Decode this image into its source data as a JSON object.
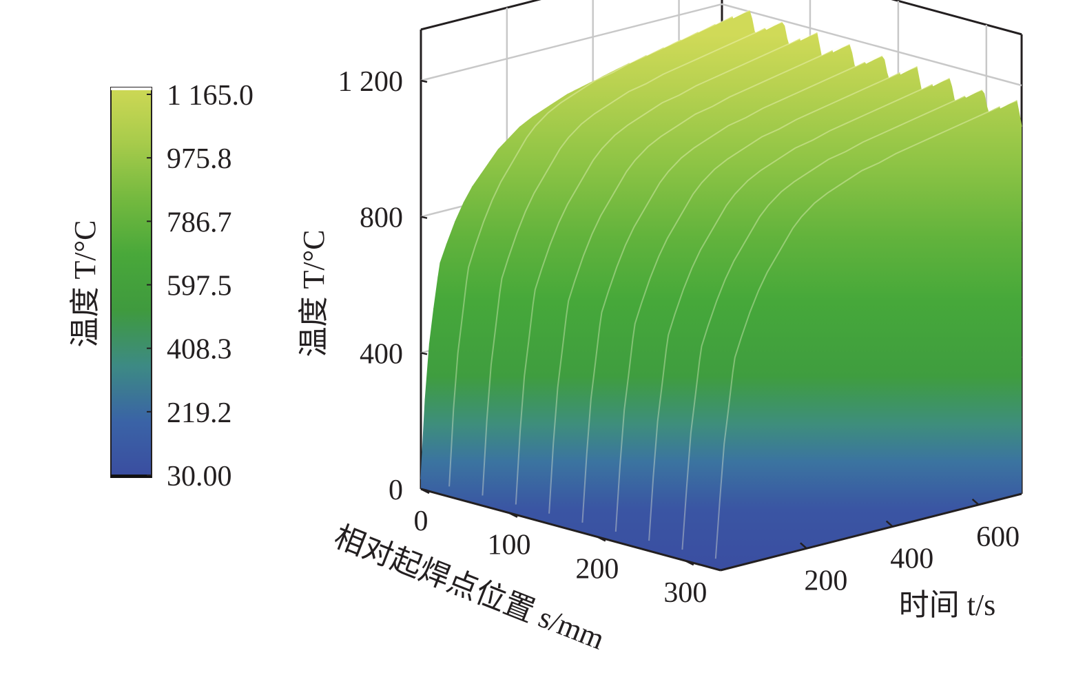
{
  "chart_data": {
    "type": "surface3d",
    "title": "",
    "colorbar": {
      "label": "温度 T/°C",
      "ticks": [
        "1 165.0",
        "975.8",
        "786.7",
        "597.5",
        "408.3",
        "219.2",
        "30.00"
      ],
      "min": 30.0,
      "max": 1165.0,
      "colors": [
        "#3a4da0",
        "#3a63a6",
        "#3d8a84",
        "#3f9a3e",
        "#49a83a",
        "#74b93f",
        "#a7cb4b",
        "#ced855"
      ]
    },
    "axes": {
      "x": {
        "label": "相对起焊点位置 s/mm",
        "ticks": [
          "0",
          "100",
          "200",
          "300"
        ],
        "range": [
          0,
          340
        ]
      },
      "y": {
        "label": "时间 t/s",
        "ticks": [
          "200",
          "400",
          "600"
        ],
        "range": [
          0,
          700
        ]
      },
      "z": {
        "label": "温度 T/°C",
        "ticks": [
          "0",
          "400",
          "800",
          "1 200"
        ],
        "range": [
          0,
          1200
        ]
      }
    },
    "grid": true,
    "series": [
      {
        "t": [
          0,
          10,
          20,
          30,
          40,
          45,
          60,
          80,
          100,
          120,
          140,
          160,
          180,
          200,
          230,
          260,
          300,
          340,
          380,
          420,
          460,
          500,
          540,
          580,
          620,
          660,
          700
        ],
        "temperature_at_s0": [
          30,
          260,
          420,
          520,
          610,
          650,
          700,
          760,
          810,
          850,
          880,
          910,
          940,
          960,
          990,
          1010,
          1030,
          1050,
          1060,
          1075,
          1085,
          1095,
          1105,
          1115,
          1125,
          1135,
          1140
        ],
        "ripple_count": 9,
        "ripple_amplitude": 70
      }
    ]
  }
}
